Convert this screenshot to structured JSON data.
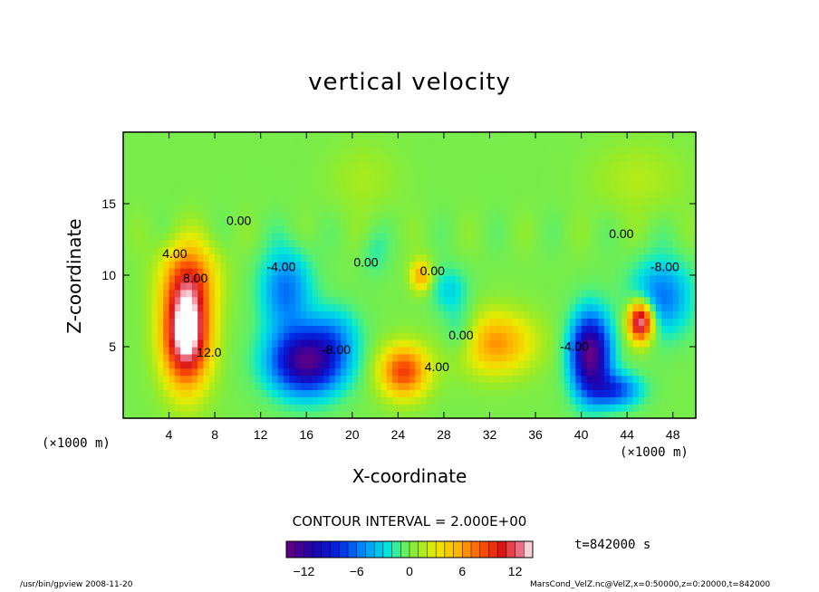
{
  "chart_data": {
    "type": "heatmap",
    "title": "vertical velocity",
    "xlabel": "X-coordinate",
    "ylabel": "Z-coordinate",
    "x_unit_label": "(×1000 m)",
    "xlim": [
      0,
      50
    ],
    "ylim": [
      0,
      20
    ],
    "x_ticks": [
      4,
      8,
      12,
      16,
      20,
      24,
      28,
      32,
      36,
      40,
      44,
      48
    ],
    "y_ticks": [
      5,
      10,
      15
    ],
    "contour_interval_text": "CONTOUR INTERVAL = 2.000E+00",
    "contour_labels": [
      {
        "text": "4.00",
        "x": 4.5,
        "y": 11.2
      },
      {
        "text": "8.00",
        "x": 6.3,
        "y": 9.5
      },
      {
        "text": "12.0",
        "x": 7.5,
        "y": 4.3
      },
      {
        "text": "0.00",
        "x": 10.1,
        "y": 13.5
      },
      {
        "text": "-4.00",
        "x": 13.8,
        "y": 10.3
      },
      {
        "text": "-8.00",
        "x": 18.6,
        "y": 4.5
      },
      {
        "text": "0.00",
        "x": 21.2,
        "y": 10.6
      },
      {
        "text": "0.00",
        "x": 27.0,
        "y": 10.0
      },
      {
        "text": "4.00",
        "x": 27.4,
        "y": 3.3
      },
      {
        "text": "0.00",
        "x": 29.5,
        "y": 5.5
      },
      {
        "text": "-4.00",
        "x": 39.4,
        "y": 4.7
      },
      {
        "text": "0.00",
        "x": 43.5,
        "y": 12.6
      },
      {
        "text": "-8.00",
        "x": 47.3,
        "y": 10.3
      }
    ],
    "colorbar": {
      "min": -14,
      "max": 14,
      "step": 1,
      "ticks": [
        -12,
        -6,
        0,
        6,
        12
      ],
      "tick_labels": [
        "−12",
        "−6",
        "0",
        "6",
        "12"
      ]
    },
    "features": [
      {
        "x": 5.5,
        "z": 6.0,
        "sx": 2.0,
        "sz": 3.6,
        "amp": 16
      },
      {
        "x": 5.8,
        "z": 10.0,
        "sx": 2.4,
        "sz": 2.5,
        "amp": 6
      },
      {
        "x": 16.0,
        "z": 4.0,
        "sx": 3.2,
        "sz": 2.3,
        "amp": -13
      },
      {
        "x": 14.2,
        "z": 9.0,
        "sx": 2.2,
        "sz": 2.8,
        "amp": -6
      },
      {
        "x": 18.5,
        "z": 6.0,
        "sx": 2.2,
        "sz": 2.0,
        "amp": -3
      },
      {
        "x": 24.5,
        "z": 3.3,
        "sx": 2.1,
        "sz": 1.8,
        "amp": 9
      },
      {
        "x": 26.0,
        "z": 10.0,
        "sx": 0.9,
        "sz": 1.1,
        "amp": 6
      },
      {
        "x": 32.5,
        "z": 5.3,
        "sx": 3.3,
        "sz": 2.1,
        "amp": 6.5
      },
      {
        "x": 29.5,
        "z": 6.0,
        "sx": 1.6,
        "sz": 1.8,
        "amp": -3
      },
      {
        "x": 28.5,
        "z": 9.0,
        "sx": 1.6,
        "sz": 1.6,
        "amp": -3
      },
      {
        "x": 40.8,
        "z": 4.5,
        "sx": 1.7,
        "sz": 2.8,
        "amp": -14
      },
      {
        "x": 43.0,
        "z": 2.0,
        "sx": 2.2,
        "sz": 1.2,
        "amp": -7
      },
      {
        "x": 45.2,
        "z": 6.8,
        "sx": 1.1,
        "sz": 1.4,
        "amp": 15
      },
      {
        "x": 47.0,
        "z": 8.5,
        "sx": 2.6,
        "sz": 2.6,
        "amp": -6
      },
      {
        "x": 45.0,
        "z": 16.8,
        "sx": 4.0,
        "sz": 2.5,
        "amp": 1.5
      },
      {
        "x": 21.0,
        "z": 16.8,
        "sx": 3.0,
        "sz": 2.5,
        "amp": 1.2
      },
      {
        "x": 22.0,
        "z": 11.5,
        "sx": 1.2,
        "sz": 1.6,
        "amp": -1.5
      }
    ]
  },
  "time_label": "t=842000 s",
  "footer_left": "/usr/bin/gpview  2008-11-20",
  "footer_right": "MarsCond_VelZ.nc@VelZ,x=0:50000,z=0:20000,t=842000"
}
